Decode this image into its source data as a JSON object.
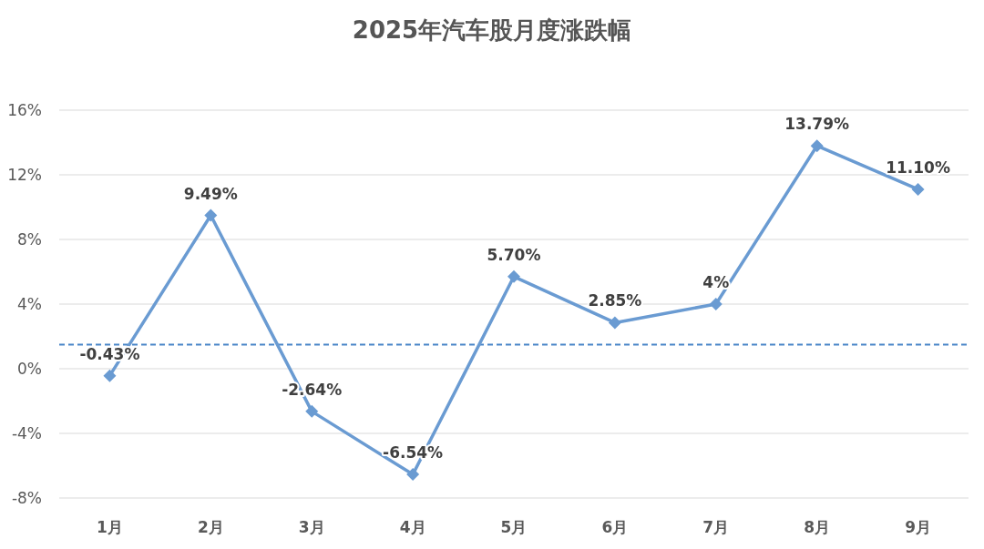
{
  "chart_data": {
    "type": "line",
    "title": "2025年汽车股月度涨跌幅",
    "categories": [
      "1月",
      "2月",
      "3月",
      "4月",
      "5月",
      "6月",
      "7月",
      "8月",
      "9月"
    ],
    "series": [
      {
        "color": "#6a9bd2",
        "values": [
          -0.43,
          9.49,
          -2.64,
          -6.54,
          5.7,
          2.85,
          4,
          13.79,
          11.1
        ],
        "value_labels": [
          "-0.43%",
          "9.49%",
          "-2.64%",
          "-6.54%",
          "5.70%",
          "2.85%",
          "4%",
          "13.79%",
          "11.10%"
        ]
      }
    ],
    "ylim": [
      -8,
      16
    ],
    "yticks": [
      {
        "value": -8,
        "label": "-8%"
      },
      {
        "value": -4,
        "label": "-4%"
      },
      {
        "value": 0,
        "label": "0%"
      },
      {
        "value": 4,
        "label": "4%"
      },
      {
        "value": 8,
        "label": "8%"
      },
      {
        "value": 12,
        "label": "12%"
      },
      {
        "value": 16,
        "label": "16%"
      }
    ],
    "grid": "y",
    "marker": "diamond",
    "line_style": "solid",
    "ref_lines": [
      {
        "axis": "y",
        "value": 1.5,
        "color": "#4a86c8",
        "line_style": "dashed"
      }
    ]
  }
}
